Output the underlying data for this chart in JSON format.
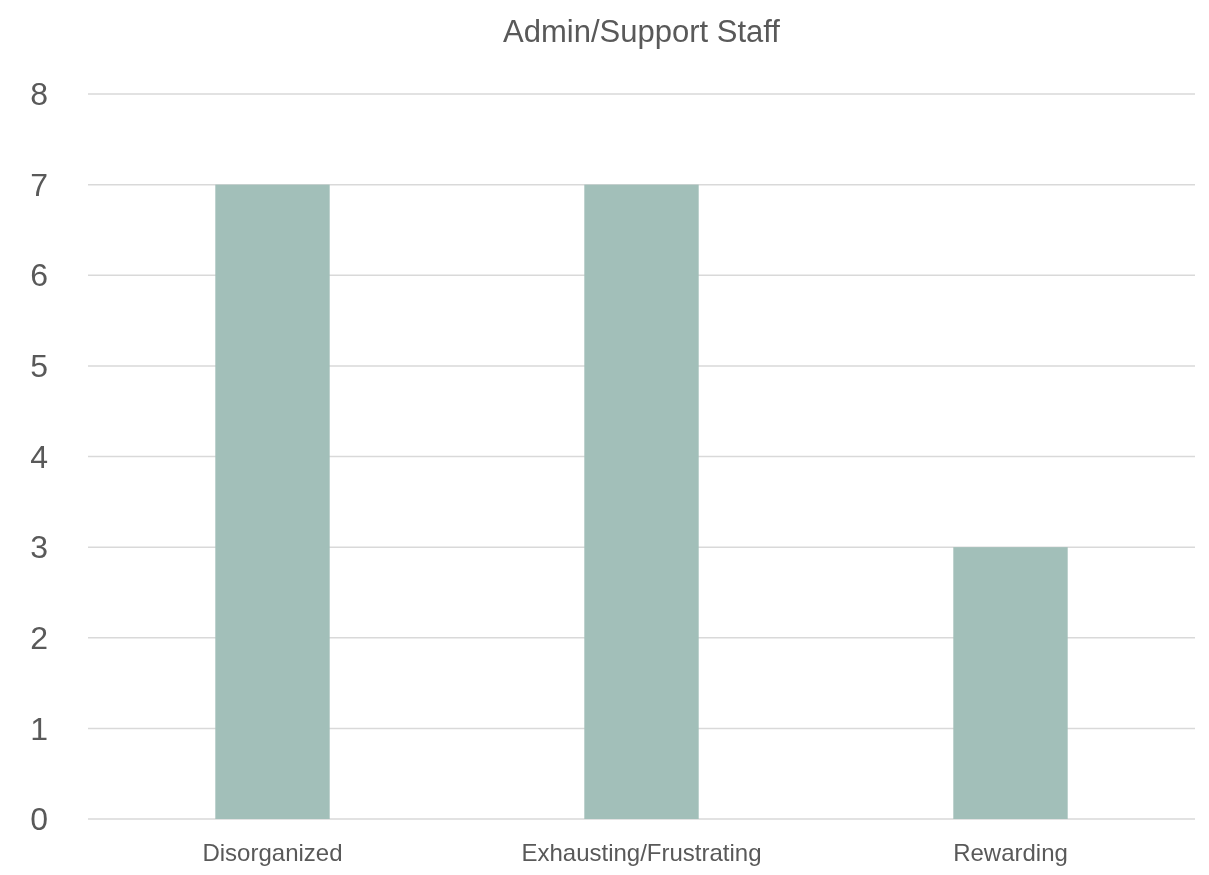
{
  "chart_data": {
    "type": "bar",
    "title": "Admin/Support Staff",
    "categories": [
      "Disorganized",
      "Exhausting/Frustrating",
      "Rewarding"
    ],
    "values": [
      7,
      7,
      3
    ],
    "color": "#a2bfb9",
    "ylim": [
      0,
      8
    ],
    "yticks": [
      0,
      1,
      2,
      3,
      4,
      5,
      6,
      7,
      8
    ],
    "grid": "y"
  }
}
